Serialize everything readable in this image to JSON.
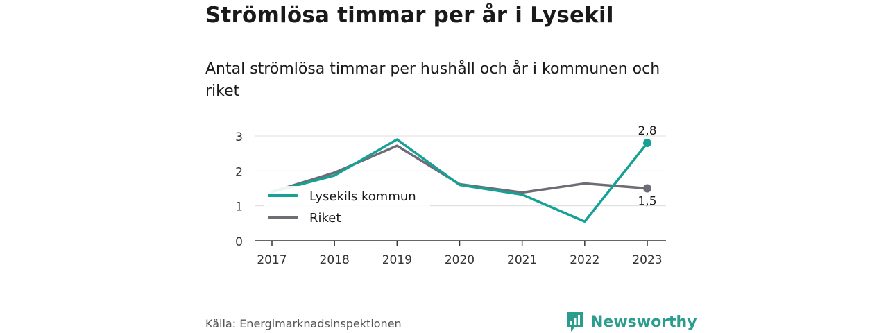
{
  "title": "Strömlösa timmar per år i Lysekil",
  "subtitle": "Antal strömlösa timmar per hushåll och år i kommunen och riket",
  "source": "Källa: Energimarknadsinspektionen",
  "brand": {
    "name": "Newsworthy",
    "icon": "newsworthy-logo-icon",
    "color": "#2a9d8f"
  },
  "chart_data": {
    "type": "line",
    "title": "Strömlösa timmar per år i Lysekil",
    "subtitle": "Antal strömlösa timmar per hushåll och år i kommunen och riket",
    "x": [
      "2017",
      "2018",
      "2019",
      "2020",
      "2021",
      "2022",
      "2023"
    ],
    "xlabel": "",
    "ylabel": "",
    "ylim": [
      0,
      3
    ],
    "yticks": [
      "0",
      "1",
      "2",
      "3"
    ],
    "grid": true,
    "legend_position": "left",
    "series": [
      {
        "name": "Lysekils kommun",
        "color": "#16a197",
        "values": [
          1.4,
          1.87,
          2.9,
          1.6,
          1.32,
          0.55,
          2.8
        ],
        "end_label": "2,8"
      },
      {
        "name": "Riket",
        "color": "#6e6c75",
        "values": [
          1.4,
          1.95,
          2.72,
          1.62,
          1.38,
          1.64,
          1.5
        ],
        "end_label": "1,5"
      }
    ]
  }
}
